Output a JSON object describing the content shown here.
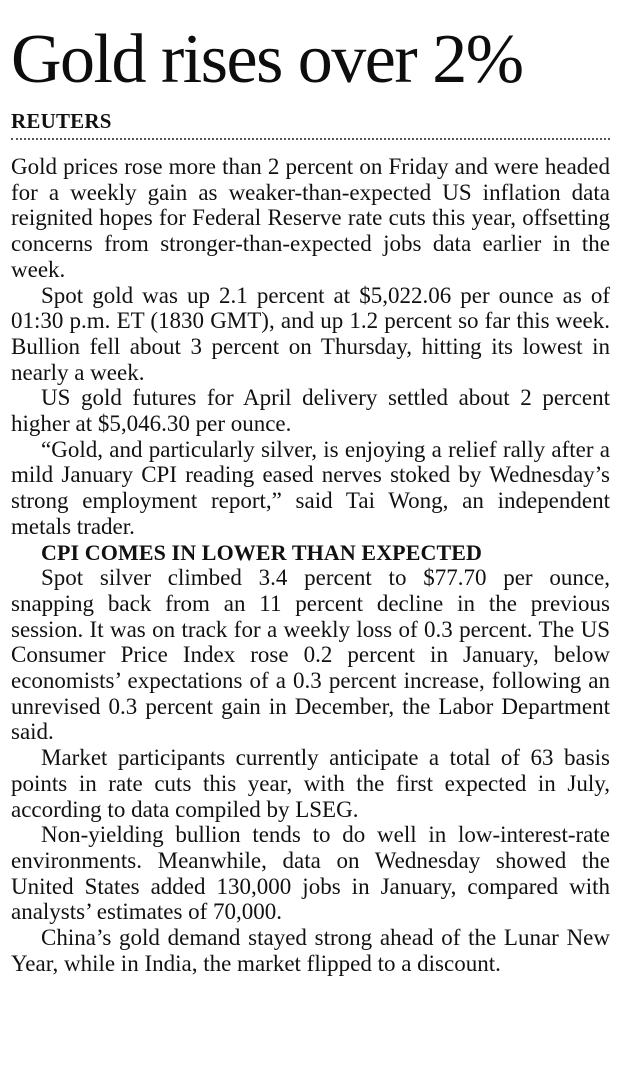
{
  "article": {
    "headline": "Gold rises over 2%",
    "byline": "REUTERS",
    "paragraphs": [
      "Gold prices rose more than 2 percent on Friday and were headed for a weekly gain as weaker-than-expected US inflation data reignited hopes for Federal Reserve rate cuts this year, offsetting concerns from stronger-than-expected jobs data earlier in the week.",
      "Spot gold was up 2.1 percent at $5,022.06 per ounce as of 01:30 p.m. ET (1830 GMT), and up 1.2 percent so far this week. Bullion fell about 3 percent on Thursday, hitting its lowest in nearly a week.",
      "US gold futures for April delivery settled about 2 percent higher at $5,046.30 per ounce.",
      "“Gold, and particularly silver, is enjoying a relief rally after a mild January CPI reading eased nerves stoked by Wednesday’s strong employment report,” said Tai Wong, an independent metals trader."
    ],
    "subhead": "CPI COMES IN LOWER THAN EXPECTED",
    "paragraphs_after": [
      "Spot silver climbed 3.4 percent to $77.70 per ounce, snapping back from an 11 percent decline in the previous session. It was on track for a weekly loss of 0.3 percent. The US Consumer Price Index rose 0.2 percent in January, below economists’ expectations of a 0.3 percent increase, following an unrevised 0.3 percent gain in December, the Labor Department said.",
      "Market participants currently anticipate a total of 63 basis points in rate cuts this year, with the first expected in July, according to data compiled by LSEG.",
      "Non-yielding bullion tends to do well in low-interest-rate environments. Meanwhile, data on Wednesday showed the United States added 130,000 jobs in January, compared with analysts’ estimates of 70,000.",
      "China’s gold demand stayed strong ahead of the Lunar New Year, while in India, the market flipped to a discount."
    ]
  }
}
